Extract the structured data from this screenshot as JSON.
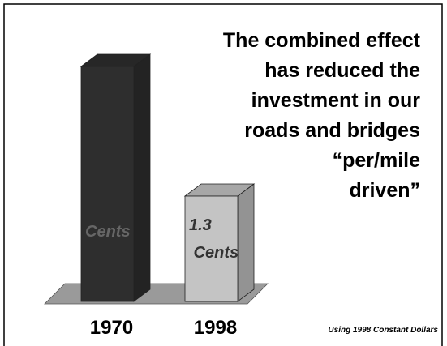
{
  "chart_data": {
    "type": "bar3d",
    "title": [
      "The combined effect",
      "has reduced the",
      "investment in our",
      "roads and bridges",
      "“per/mile",
      "driven”"
    ],
    "categories": [
      "1970",
      "1998"
    ],
    "values": [
      2.9,
      1.3
    ],
    "value_labels": [
      "Cents",
      "1.3 Cents"
    ],
    "colors": [
      "#2e2e2e",
      "#c4c4c4"
    ],
    "annotation": "Using 1998 Constant Dollars"
  }
}
